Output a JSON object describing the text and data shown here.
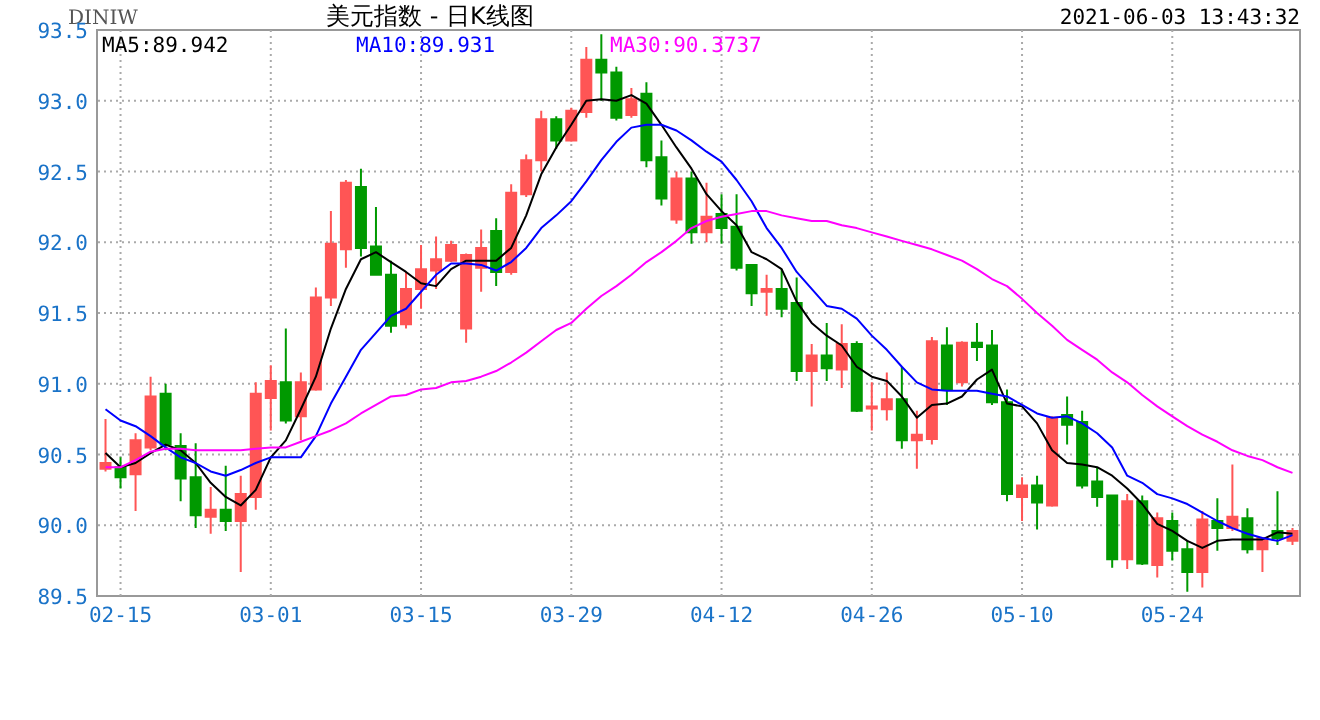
{
  "chart_data": {
    "type": "candlestick",
    "title": "美元指数 - 日K线图",
    "annotations": [
      "DINIW",
      "2021-06-03 13:43:32"
    ],
    "categories": [
      null,
      "02-15",
      null,
      null,
      null,
      null,
      null,
      null,
      null,
      null,
      null,
      "03-01",
      null,
      null,
      null,
      null,
      null,
      null,
      null,
      null,
      null,
      "03-15",
      null,
      null,
      null,
      null,
      null,
      null,
      null,
      null,
      null,
      "03-29",
      null,
      null,
      null,
      null,
      null,
      null,
      null,
      null,
      null,
      "04-12",
      null,
      null,
      null,
      null,
      null,
      null,
      null,
      null,
      null,
      "04-26",
      null,
      null,
      null,
      null,
      null,
      null,
      null,
      null,
      null,
      "05-10",
      null,
      null,
      null,
      null,
      null,
      null,
      null,
      null,
      null,
      "05-24",
      null,
      null,
      null,
      null,
      null,
      null,
      null,
      null
    ],
    "ylim": [
      89.5,
      93.5
    ],
    "yticks": [
      {
        "value": 89.5,
        "label": "89.5"
      },
      {
        "value": 90,
        "label": "90.0"
      },
      {
        "value": 90.5,
        "label": "90.5"
      },
      {
        "value": 91,
        "label": "91.0"
      },
      {
        "value": 91.5,
        "label": "91.5"
      },
      {
        "value": 92,
        "label": "92.0"
      },
      {
        "value": 92.5,
        "label": "92.5"
      },
      {
        "value": 93,
        "label": "93.0"
      },
      {
        "value": 93.5,
        "label": "93.5"
      }
    ],
    "grid": true,
    "legend": "top left",
    "ohlc": [
      [
        90.4,
        90.75,
        90.38,
        90.44
      ],
      [
        90.41,
        90.48,
        90.26,
        90.34
      ],
      [
        90.36,
        90.65,
        90.1,
        90.6
      ],
      [
        90.55,
        91.05,
        90.53,
        90.91
      ],
      [
        90.93,
        91.0,
        90.53,
        90.57
      ],
      [
        90.56,
        90.65,
        90.17,
        90.33
      ],
      [
        90.34,
        90.58,
        89.98,
        90.07
      ],
      [
        90.06,
        90.27,
        89.94,
        90.11
      ],
      [
        90.11,
        90.42,
        89.96,
        90.03
      ],
      [
        90.03,
        90.35,
        89.67,
        90.22
      ],
      [
        90.2,
        91.01,
        90.11,
        90.93
      ],
      [
        90.9,
        91.13,
        90.67,
        91.02
      ],
      [
        91.01,
        91.39,
        90.72,
        90.74
      ],
      [
        90.77,
        91.08,
        90.6,
        91.01
      ],
      [
        90.96,
        91.68,
        90.95,
        91.61
      ],
      [
        91.61,
        92.22,
        91.55,
        91.99
      ],
      [
        91.95,
        92.44,
        91.82,
        92.42
      ],
      [
        92.39,
        92.52,
        91.9,
        91.96
      ],
      [
        91.97,
        92.25,
        91.77,
        91.77
      ],
      [
        91.77,
        91.87,
        91.36,
        91.41
      ],
      [
        91.42,
        91.79,
        91.39,
        91.67
      ],
      [
        91.67,
        91.98,
        91.53,
        91.81
      ],
      [
        91.8,
        92.04,
        91.67,
        91.88
      ],
      [
        91.87,
        92.01,
        91.86,
        91.98
      ],
      [
        91.39,
        91.92,
        91.29,
        91.91
      ],
      [
        91.82,
        92.09,
        91.65,
        91.96
      ],
      [
        92.08,
        92.17,
        91.69,
        91.79
      ],
      [
        91.79,
        92.41,
        91.77,
        92.35
      ],
      [
        92.34,
        92.62,
        92.32,
        92.58
      ],
      [
        92.58,
        92.93,
        92.5,
        92.87
      ],
      [
        92.87,
        92.89,
        92.66,
        92.72
      ],
      [
        92.72,
        92.95,
        92.71,
        92.93
      ],
      [
        92.92,
        93.38,
        92.88,
        93.29
      ],
      [
        93.29,
        93.47,
        93.0,
        93.2
      ],
      [
        93.2,
        93.24,
        92.86,
        92.88
      ],
      [
        92.9,
        93.09,
        92.88,
        93.01
      ],
      [
        93.05,
        93.13,
        92.53,
        92.58
      ],
      [
        92.6,
        92.72,
        92.26,
        92.31
      ],
      [
        92.16,
        92.5,
        92.13,
        92.45
      ],
      [
        92.45,
        92.5,
        91.99,
        92.07
      ],
      [
        92.07,
        92.42,
        92.0,
        92.18
      ],
      [
        92.2,
        92.34,
        91.99,
        92.1
      ],
      [
        92.11,
        92.34,
        91.8,
        91.82
      ],
      [
        91.84,
        91.84,
        91.55,
        91.64
      ],
      [
        91.65,
        91.77,
        91.48,
        91.67
      ],
      [
        91.67,
        91.81,
        91.47,
        91.53
      ],
      [
        91.57,
        91.75,
        91.02,
        91.09
      ],
      [
        91.09,
        91.28,
        90.84,
        91.2
      ],
      [
        91.2,
        91.43,
        91.02,
        91.11
      ],
      [
        91.1,
        91.42,
        90.97,
        91.28
      ],
      [
        91.28,
        91.3,
        90.8,
        90.81
      ],
      [
        90.83,
        91.01,
        90.67,
        90.84
      ],
      [
        90.82,
        91.08,
        90.74,
        90.89
      ],
      [
        90.89,
        91.12,
        90.54,
        90.6
      ],
      [
        90.6,
        90.81,
        90.4,
        90.64
      ],
      [
        90.61,
        91.33,
        90.57,
        91.3
      ],
      [
        91.27,
        91.4,
        90.85,
        90.96
      ],
      [
        91.01,
        91.3,
        90.98,
        91.29
      ],
      [
        91.29,
        91.43,
        91.16,
        91.26
      ],
      [
        91.27,
        91.38,
        90.85,
        90.87
      ],
      [
        90.87,
        90.96,
        90.17,
        90.22
      ],
      [
        90.2,
        90.34,
        90.03,
        90.28
      ],
      [
        90.28,
        90.35,
        89.97,
        90.16
      ],
      [
        90.14,
        90.77,
        90.13,
        90.76
      ],
      [
        90.78,
        90.91,
        90.57,
        90.71
      ],
      [
        90.73,
        90.81,
        90.26,
        90.28
      ],
      [
        90.31,
        90.41,
        90.13,
        90.2
      ],
      [
        90.21,
        90.21,
        89.7,
        89.76
      ],
      [
        89.76,
        90.22,
        89.69,
        90.17
      ],
      [
        90.17,
        90.21,
        89.72,
        89.73
      ],
      [
        89.72,
        90.09,
        89.63,
        90.05
      ],
      [
        90.03,
        90.09,
        89.75,
        89.82
      ],
      [
        89.83,
        89.89,
        89.53,
        89.67
      ],
      [
        89.67,
        90.1,
        89.56,
        90.04
      ],
      [
        90.03,
        90.19,
        89.82,
        89.98
      ],
      [
        89.98,
        90.43,
        89.96,
        90.06
      ],
      [
        90.05,
        90.12,
        89.8,
        89.83
      ],
      [
        89.83,
        89.91,
        89.67,
        89.91
      ],
      [
        89.96,
        90.24,
        89.86,
        89.91
      ],
      [
        89.89,
        89.98,
        89.86,
        89.96
      ]
    ],
    "colors": [
      "#ff5555",
      "#009900",
      "#ff5555",
      "#ff5555",
      "#009900",
      "#009900",
      "#009900",
      "#ff5555",
      "#009900",
      "#ff5555",
      "#ff5555",
      "#ff5555",
      "#009900",
      "#ff5555",
      "#ff5555",
      "#ff5555",
      "#ff5555",
      "#009900",
      "#009900",
      "#009900",
      "#ff5555",
      "#ff5555",
      "#ff5555",
      "#ff5555",
      "#ff5555",
      "#ff5555",
      "#009900",
      "#ff5555",
      "#ff5555",
      "#ff5555",
      "#009900",
      "#ff5555",
      "#ff5555",
      "#009900",
      "#009900",
      "#ff5555",
      "#009900",
      "#009900",
      "#ff5555",
      "#009900",
      "#ff5555",
      "#009900",
      "#009900",
      "#009900",
      "#ff5555",
      "#009900",
      "#009900",
      "#ff5555",
      "#009900",
      "#ff5555",
      "#009900",
      "#ff5555",
      "#ff5555",
      "#009900",
      "#ff5555",
      "#ff5555",
      "#009900",
      "#ff5555",
      "#009900",
      "#009900",
      "#009900",
      "#ff5555",
      "#009900",
      "#ff5555",
      "#009900",
      "#009900",
      "#009900",
      "#009900",
      "#ff5555",
      "#009900",
      "#ff5555",
      "#009900",
      "#009900",
      "#ff5555",
      "#009900",
      "#ff5555",
      "#009900",
      "#ff5555",
      "#009900",
      "#ff5555"
    ],
    "series": [
      {
        "type": "line",
        "name": "MA5:89.942",
        "color": "#000000",
        "values": [
          90.51,
          90.41,
          90.44,
          90.51,
          90.57,
          90.53,
          90.44,
          90.3,
          90.2,
          90.14,
          90.25,
          90.48,
          90.6,
          90.82,
          91.05,
          91.39,
          91.67,
          91.88,
          91.93,
          91.86,
          91.79,
          91.71,
          91.69,
          91.81,
          91.87,
          91.87,
          91.87,
          91.96,
          92.19,
          92.48,
          92.67,
          92.83,
          93.0,
          93.01,
          93.0,
          93.04,
          92.98,
          92.83,
          92.67,
          92.52,
          92.34,
          92.22,
          92.12,
          91.93,
          91.88,
          91.81,
          91.58,
          91.43,
          91.34,
          91.27,
          91.12,
          91.05,
          91.02,
          90.91,
          90.76,
          90.85,
          90.86,
          90.91,
          91.03,
          91.1,
          90.86,
          90.84,
          90.72,
          90.53,
          90.44,
          90.43,
          90.41,
          90.35,
          90.26,
          90.15,
          90.01,
          89.96,
          89.89,
          89.84,
          89.89,
          89.9,
          89.9,
          89.9,
          89.95,
          89.94
        ]
      },
      {
        "type": "line",
        "name": "MA10:89.931",
        "color": "#0000ff",
        "values": [
          90.82,
          90.74,
          90.7,
          90.63,
          90.55,
          90.48,
          90.44,
          90.38,
          90.35,
          90.39,
          90.44,
          90.48,
          90.48,
          90.48,
          90.63,
          90.86,
          91.05,
          91.24,
          91.36,
          91.48,
          91.53,
          91.65,
          91.77,
          91.85,
          91.85,
          91.84,
          91.8,
          91.86,
          91.96,
          92.1,
          92.19,
          92.29,
          92.43,
          92.58,
          92.71,
          92.81,
          92.83,
          92.83,
          92.79,
          92.72,
          92.64,
          92.57,
          92.44,
          92.29,
          92.1,
          91.96,
          91.79,
          91.67,
          91.55,
          91.53,
          91.46,
          91.34,
          91.24,
          91.12,
          91.01,
          90.96,
          90.95,
          90.95,
          90.95,
          90.93,
          90.91,
          90.85,
          90.79,
          90.76,
          90.77,
          90.72,
          90.65,
          90.55,
          90.35,
          90.3,
          90.22,
          90.19,
          90.15,
          90.09,
          90.03,
          89.98,
          89.94,
          89.91,
          89.89,
          89.93
        ]
      },
      {
        "type": "line",
        "name": "MA30:90.3737",
        "color": "#ff00ff",
        "values": [
          90.41,
          90.41,
          90.46,
          90.52,
          90.54,
          90.54,
          90.53,
          90.53,
          90.53,
          90.53,
          90.54,
          90.55,
          90.55,
          90.59,
          90.63,
          90.67,
          90.72,
          90.79,
          90.85,
          90.91,
          90.92,
          90.96,
          90.97,
          91.01,
          91.02,
          91.05,
          91.09,
          91.15,
          91.22,
          91.3,
          91.38,
          91.43,
          91.53,
          91.62,
          91.69,
          91.77,
          91.86,
          91.93,
          92.01,
          92.1,
          92.15,
          92.18,
          92.2,
          92.22,
          92.22,
          92.19,
          92.17,
          92.15,
          92.15,
          92.12,
          92.1,
          92.07,
          92.04,
          92.01,
          91.98,
          91.95,
          91.91,
          91.87,
          91.81,
          91.74,
          91.69,
          91.6,
          91.5,
          91.41,
          91.31,
          91.24,
          91.17,
          91.08,
          91.01,
          90.92,
          90.84,
          90.77,
          90.7,
          90.64,
          90.59,
          90.53,
          90.49,
          90.46,
          90.41,
          90.37
        ]
      }
    ]
  }
}
